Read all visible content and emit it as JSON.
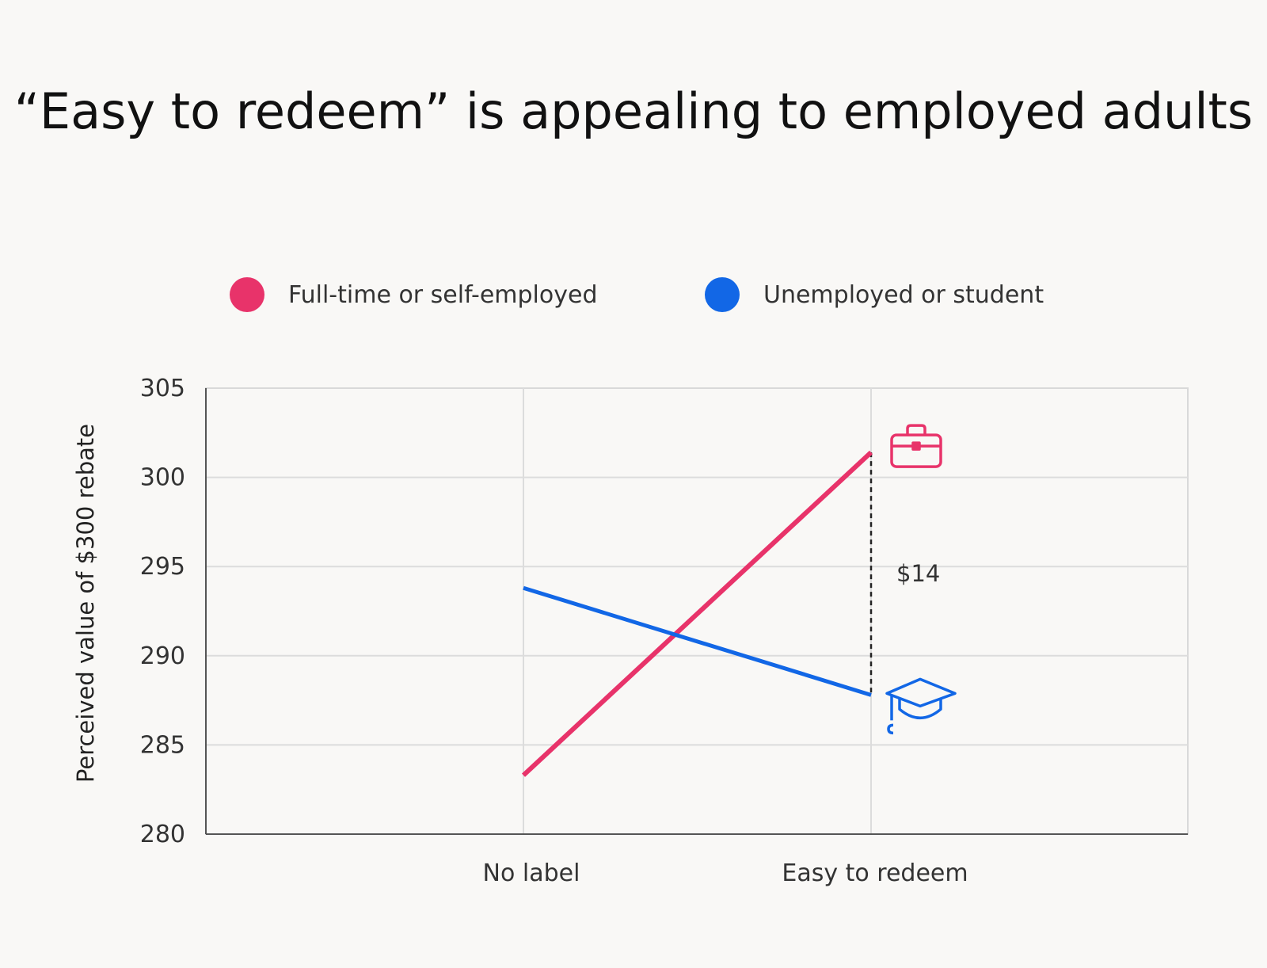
{
  "title": "“Easy to redeem” is appealing to employed adults",
  "chart_data": {
    "type": "line",
    "title": "“Easy to redeem” is appealing to employed adults",
    "categories": [
      "No label",
      "Easy to redeem"
    ],
    "series": [
      {
        "name": "Full-time or self-employed",
        "values": [
          283.3,
          301.4
        ],
        "color": "#e8336a",
        "end_icon": "briefcase-icon"
      },
      {
        "name": "Unemployed or student",
        "values": [
          293.8,
          287.8
        ],
        "color": "#1267e6",
        "end_icon": "graduation-cap-icon"
      }
    ],
    "xlabel": "",
    "ylabel": "Perceived value of $300 rebate",
    "ylim": [
      280,
      305
    ],
    "yticks": [
      "280",
      "285",
      "290",
      "295",
      "300",
      "305"
    ],
    "grid": true,
    "legend_position": "top",
    "annotation": {
      "label": "$14",
      "category": "Easy to redeem",
      "from_value": 287.8,
      "to_value": 301.4
    }
  }
}
